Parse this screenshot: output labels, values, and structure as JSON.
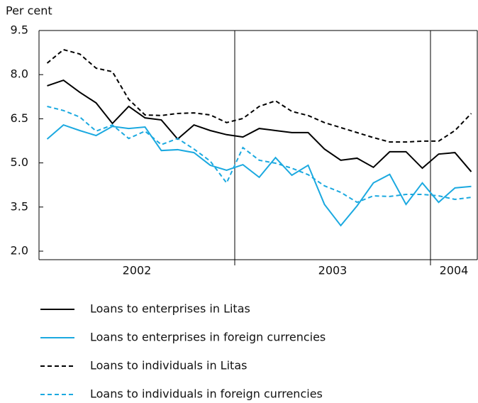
{
  "chart_data": {
    "type": "line",
    "y_axis_label": "Per cent",
    "categories": [
      null,
      null,
      null,
      null,
      null,
      null,
      null,
      null,
      null,
      null,
      null,
      null,
      null,
      null,
      null,
      null,
      null,
      null,
      null,
      null,
      null,
      null,
      null,
      null,
      null,
      null,
      null
    ],
    "x_group_labels": [
      "2002",
      "2003",
      "2004"
    ],
    "x_group_sizes": [
      12,
      12,
      3
    ],
    "ylim": [
      2.0,
      9.5
    ],
    "yticks": [
      {
        "value": 2.0,
        "label": "2.0"
      },
      3.5,
      {
        "value": 5.0,
        "label": "5.0"
      },
      6.5,
      {
        "value": 8.0,
        "label": "8.0"
      },
      9.5
    ],
    "series": [
      {
        "name": "Loans to enterprises in Litas",
        "color": "#000000",
        "dashed": false,
        "values": [
          7.62,
          7.81,
          7.4,
          7.04,
          6.34,
          6.92,
          6.53,
          6.46,
          5.81,
          6.29,
          6.1,
          5.96,
          5.88,
          6.17,
          6.1,
          6.03,
          6.03,
          5.47,
          5.09,
          5.16,
          4.85,
          5.38,
          5.38,
          4.82,
          5.3,
          5.35,
          4.7
        ]
      },
      {
        "name": "Loans to enterprises in foreign currencies",
        "color": "#1ba9e0",
        "dashed": false,
        "values": [
          5.81,
          6.29,
          6.1,
          5.93,
          6.24,
          6.17,
          6.22,
          5.42,
          5.45,
          5.35,
          4.92,
          4.75,
          4.94,
          4.51,
          5.18,
          4.58,
          4.92,
          3.59,
          2.87,
          3.54,
          4.32,
          4.61,
          3.59,
          4.32,
          3.66,
          4.15,
          4.2
        ]
      },
      {
        "name": "Loans to individuals in Litas",
        "color": "#000000",
        "dashed": true,
        "values": [
          8.39,
          8.85,
          8.7,
          8.22,
          8.1,
          7.16,
          6.63,
          6.61,
          6.68,
          6.7,
          6.63,
          6.37,
          6.51,
          6.92,
          7.11,
          6.75,
          6.61,
          6.37,
          6.2,
          6.03,
          5.86,
          5.71,
          5.71,
          5.74,
          5.74,
          6.1,
          6.68
        ]
      },
      {
        "name": "Loans to individuals in foreign currencies",
        "color": "#1ba9e0",
        "dashed": true,
        "values": [
          6.92,
          6.78,
          6.56,
          6.08,
          6.29,
          5.83,
          6.08,
          5.62,
          5.83,
          5.47,
          5.06,
          4.32,
          5.52,
          5.09,
          4.99,
          4.82,
          4.6,
          4.22,
          4.0,
          3.66,
          3.88,
          3.86,
          3.93,
          3.93,
          3.88,
          3.76,
          3.83
        ]
      }
    ]
  }
}
